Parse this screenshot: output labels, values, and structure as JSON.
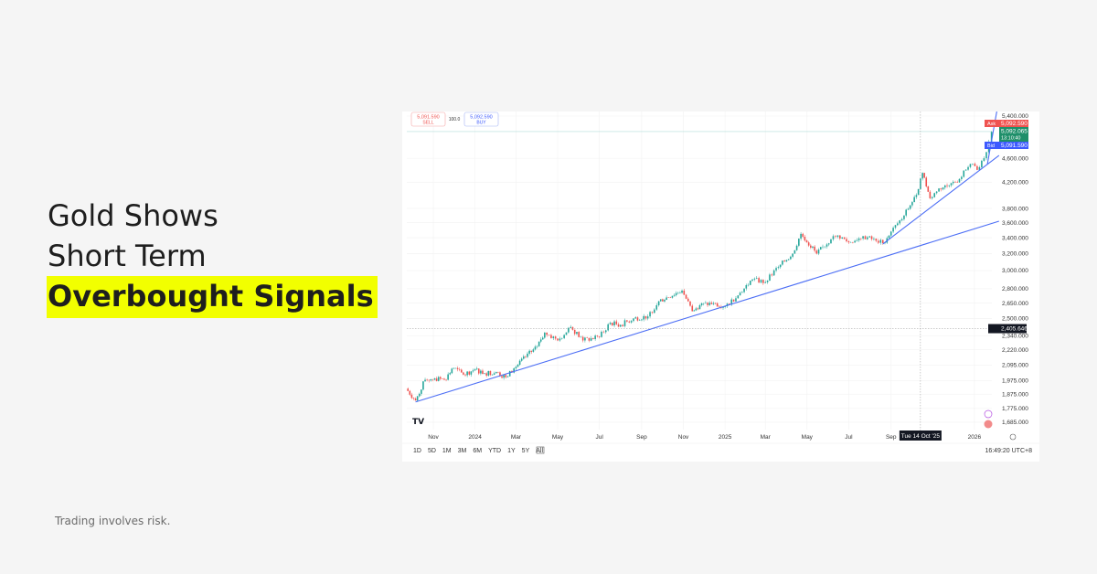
{
  "headline": {
    "line1": "Gold Shows",
    "line2": "Short Term",
    "line3": "Overbought Signals"
  },
  "disclaimer": "Trading involves risk.",
  "colors": {
    "highlight": "#f2ff00",
    "up": "#26a69a",
    "down": "#ef5350",
    "trendline": "#4c6ef5",
    "background": "#f5f5f5"
  },
  "trade": {
    "sell_price": "5,091.590",
    "sell_label": "SELL",
    "spread": "100.0",
    "buy_price": "5,092.590",
    "buy_label": "BUY"
  },
  "price_labels": {
    "ask_tag": "Ask",
    "ask": "5,092.590",
    "last": "5,092.065",
    "countdown": "13:10:40",
    "bid_tag": "Bid",
    "bid": "5,091.590",
    "crosshair": "2,405.646"
  },
  "crosshair_date": "Tue 14 Oct '25",
  "range_buttons": [
    "1D",
    "5D",
    "1M",
    "3M",
    "6M",
    "YTD",
    "1Y",
    "5Y",
    "All"
  ],
  "clock": "16:49:20 UTC+8",
  "logo": "TV",
  "chart_data": {
    "type": "candlestick",
    "title": "",
    "y_scale": "log",
    "ylim": [
      1640,
      5600
    ],
    "grid": true,
    "y_ticks": [
      "5,400.000",
      "4,600.000",
      "4,200.000",
      "3,800.000",
      "3,600.000",
      "3,400.000",
      "3,200.000",
      "3,000.000",
      "2,800.000",
      "2,650.000",
      "2,500.000",
      "2,340.000",
      "2,220.000",
      "2,095.000",
      "1,975.000",
      "1,875.000",
      "1,775.000",
      "1,685.000"
    ],
    "y_tick_values": [
      5400,
      4600,
      4200,
      3800,
      3600,
      3400,
      3200,
      3000,
      2800,
      2650,
      2500,
      2340,
      2220,
      2095,
      1975,
      1875,
      1775,
      1685
    ],
    "x_ticks": [
      {
        "label": "Nov",
        "date": "2023-11-01"
      },
      {
        "label": "2024",
        "date": "2024-01-01"
      },
      {
        "label": "Mar",
        "date": "2024-03-01"
      },
      {
        "label": "May",
        "date": "2024-05-01"
      },
      {
        "label": "Jul",
        "date": "2024-07-01"
      },
      {
        "label": "Sep",
        "date": "2024-09-01"
      },
      {
        "label": "Nov",
        "date": "2024-11-01"
      },
      {
        "label": "2025",
        "date": "2025-01-01"
      },
      {
        "label": "Mar",
        "date": "2025-03-01"
      },
      {
        "label": "May",
        "date": "2025-05-01"
      },
      {
        "label": "Jul",
        "date": "2025-07-01"
      },
      {
        "label": "Sep",
        "date": "2025-09-01"
      },
      {
        "label": "2026",
        "date": "2026-01-01"
      }
    ],
    "closes": [
      [
        "2023-09-22",
        1915
      ],
      [
        "2023-10-06",
        1830
      ],
      [
        "2023-10-20",
        1980
      ],
      [
        "2023-11-03",
        1990
      ],
      [
        "2023-11-17",
        1980
      ],
      [
        "2023-12-01",
        2070
      ],
      [
        "2023-12-15",
        2020
      ],
      [
        "2024-01-01",
        2060
      ],
      [
        "2024-01-15",
        2030
      ],
      [
        "2024-02-01",
        2040
      ],
      [
        "2024-02-15",
        2000
      ],
      [
        "2024-03-01",
        2080
      ],
      [
        "2024-03-15",
        2160
      ],
      [
        "2024-04-01",
        2250
      ],
      [
        "2024-04-12",
        2370
      ],
      [
        "2024-05-01",
        2300
      ],
      [
        "2024-05-20",
        2420
      ],
      [
        "2024-06-07",
        2300
      ],
      [
        "2024-07-01",
        2330
      ],
      [
        "2024-07-17",
        2460
      ],
      [
        "2024-08-01",
        2440
      ],
      [
        "2024-08-20",
        2500
      ],
      [
        "2024-09-10",
        2520
      ],
      [
        "2024-09-26",
        2670
      ],
      [
        "2024-10-30",
        2780
      ],
      [
        "2024-11-14",
        2570
      ],
      [
        "2024-11-25",
        2630
      ],
      [
        "2024-12-15",
        2650
      ],
      [
        "2025-01-01",
        2620
      ],
      [
        "2025-01-20",
        2730
      ],
      [
        "2025-02-10",
        2900
      ],
      [
        "2025-03-01",
        2870
      ],
      [
        "2025-03-20",
        3040
      ],
      [
        "2025-04-10",
        3200
      ],
      [
        "2025-04-22",
        3450
      ],
      [
        "2025-05-15",
        3200
      ],
      [
        "2025-06-05",
        3380
      ],
      [
        "2025-06-15",
        3430
      ],
      [
        "2025-07-01",
        3340
      ],
      [
        "2025-07-22",
        3420
      ],
      [
        "2025-08-10",
        3360
      ],
      [
        "2025-08-20",
        3330
      ],
      [
        "2025-09-01",
        3480
      ],
      [
        "2025-09-20",
        3700
      ],
      [
        "2025-10-08",
        4000
      ],
      [
        "2025-10-17",
        4350
      ],
      [
        "2025-10-28",
        3950
      ],
      [
        "2025-11-10",
        4100
      ],
      [
        "2025-11-25",
        4150
      ],
      [
        "2025-12-10",
        4250
      ],
      [
        "2025-12-26",
        4500
      ],
      [
        "2026-01-05",
        4400
      ],
      [
        "2026-01-15",
        4600
      ],
      [
        "2026-01-22",
        4900
      ],
      [
        "2026-01-26",
        5090
      ]
    ],
    "trendlines": [
      {
        "from": [
          "2023-10-06",
          1820
        ],
        "to": [
          "2026-02-06",
          3620
        ]
      },
      {
        "from": [
          "2025-08-20",
          3320
        ],
        "to": [
          "2026-02-06",
          4650
        ]
      },
      {
        "from": [
          "2026-01-20",
          4500
        ],
        "to": [
          "2026-02-04",
          5600
        ]
      }
    ],
    "crosshair": {
      "date": "2025-10-14",
      "price": 2405.646
    }
  }
}
